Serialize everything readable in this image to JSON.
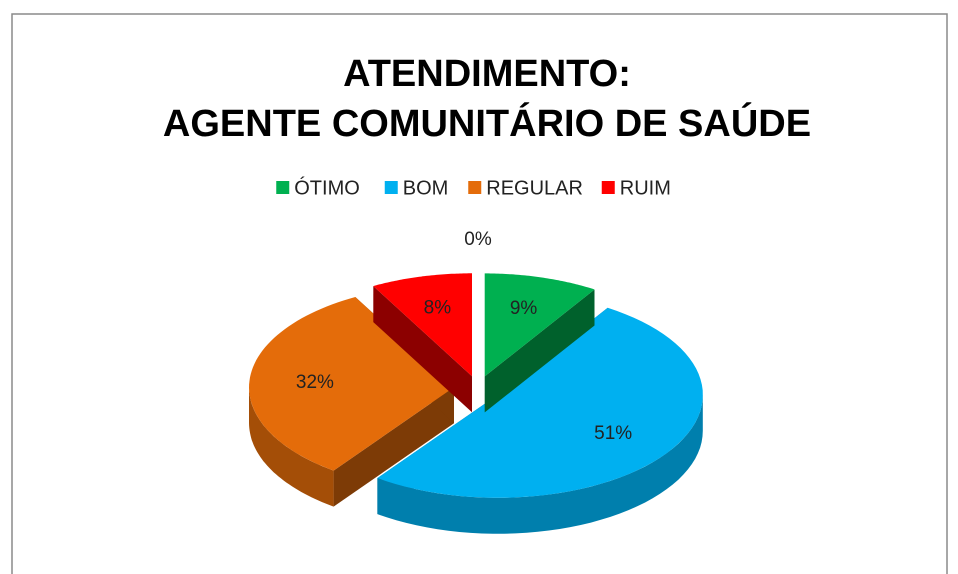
{
  "chart_data": {
    "type": "pie3d",
    "title": [
      "ATENDIMENTO:",
      "AGENTE COMUNITÁRIO DE SAÚDE"
    ],
    "categories": [
      "ÓTIMO",
      "BOM",
      "REGULAR",
      "RUIM",
      null
    ],
    "values": [
      9,
      51,
      32,
      8,
      0
    ],
    "value_labels": [
      "9%",
      "51%",
      "32%",
      "8%",
      "0%"
    ],
    "colors": [
      "#00b050",
      "#00b0f0",
      "#e46c0a",
      "#ff0000"
    ],
    "legend": "top"
  }
}
